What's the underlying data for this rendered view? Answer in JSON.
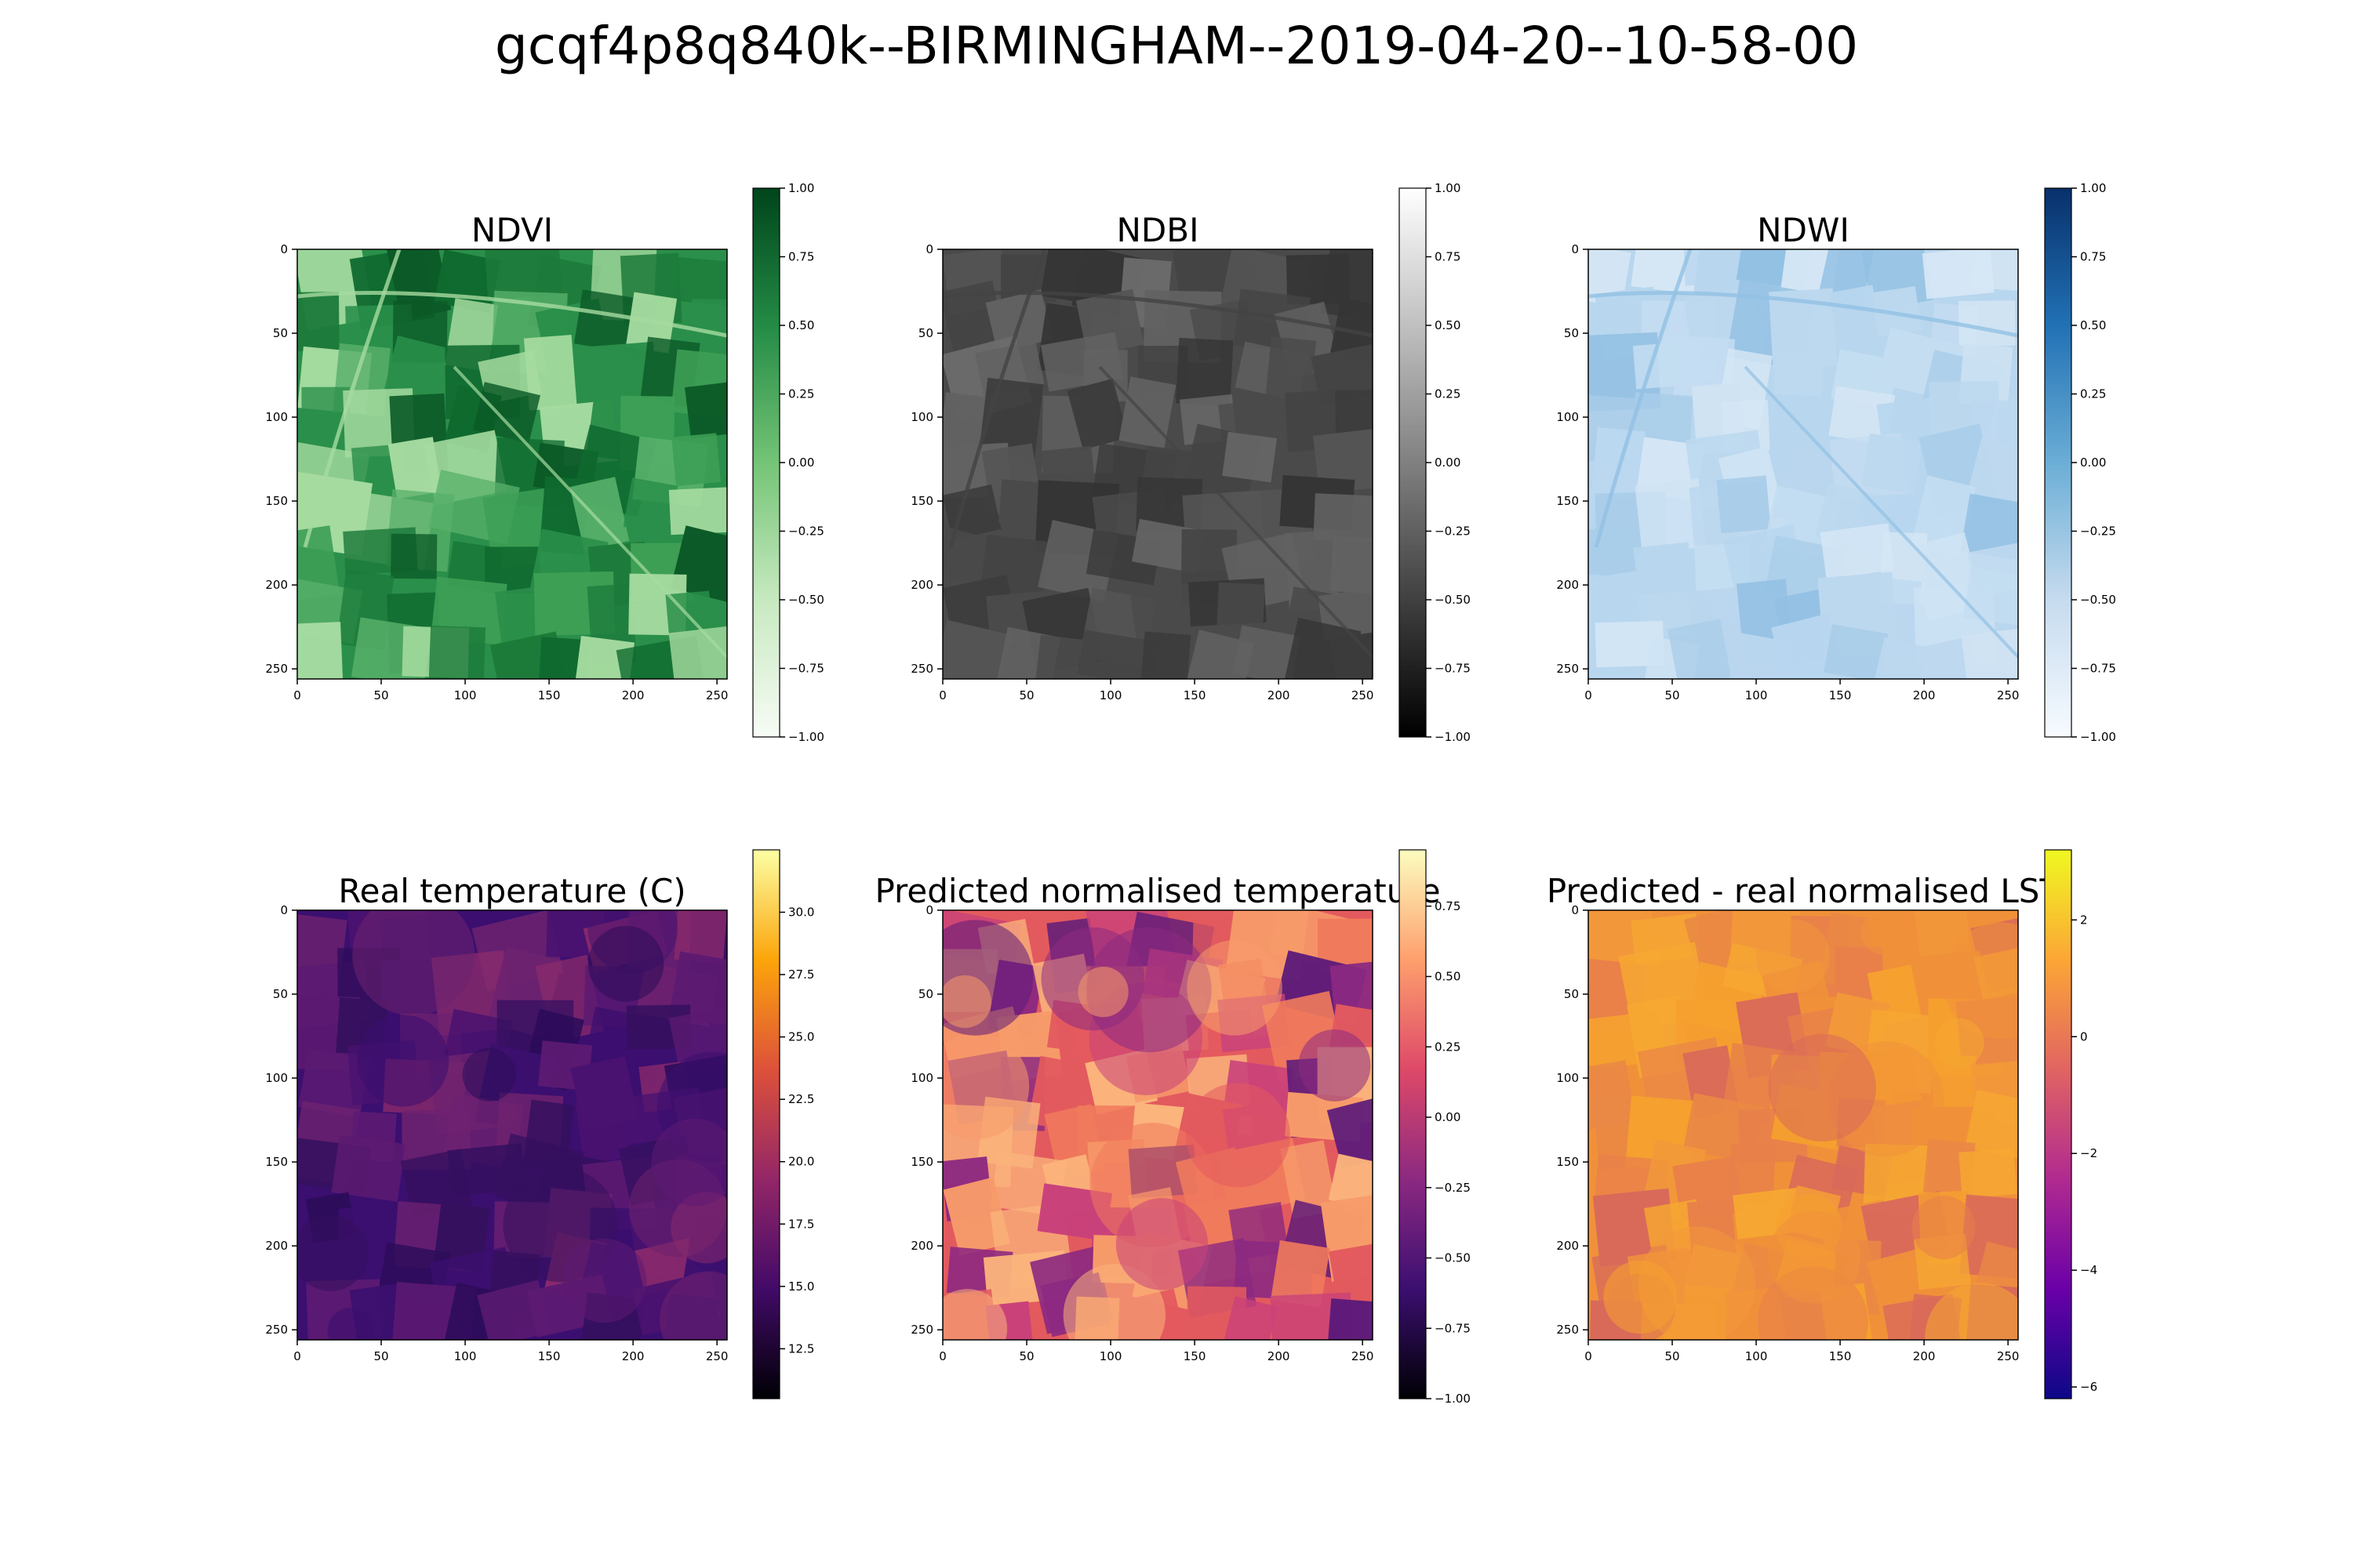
{
  "figure": {
    "suptitle": "gcqf4p8q840k--BIRMINGHAM--2019-04-20--10-58-00"
  },
  "chart_data": [
    {
      "type": "heatmap",
      "title": "NDVI",
      "colormap": "Greens",
      "gradient": [
        "#f7fcf5",
        "#c7e9c0",
        "#74c476",
        "#238b45",
        "#00441b"
      ],
      "field_colors": [
        "#2a8f4a",
        "#1c7a3a",
        "#0f6a2f",
        "#58b06a",
        "#a6dba0",
        "#3d9f55",
        "#0b5a27"
      ],
      "xticks": [
        0,
        50,
        100,
        150,
        200,
        250
      ],
      "yticks": [
        0,
        50,
        100,
        150,
        200,
        250
      ],
      "xlim": [
        0,
        256
      ],
      "ylim": [
        256,
        0
      ],
      "colorbar": {
        "min": -1.0,
        "max": 1.0,
        "ticks": [
          "1.00",
          "0.75",
          "0.50",
          "0.25",
          "0.00",
          "−0.25",
          "−0.50",
          "−0.75",
          "−1.00"
        ],
        "tick_values": [
          1.0,
          0.75,
          0.5,
          0.25,
          0.0,
          -0.25,
          -0.5,
          -0.75,
          -1.0
        ]
      }
    },
    {
      "type": "heatmap",
      "title": "NDBI",
      "colormap": "gray",
      "gradient": [
        "#000000",
        "#404040",
        "#808080",
        "#c0c0c0",
        "#ffffff"
      ],
      "field_colors": [
        "#4a4a4a",
        "#3b3b3b",
        "#555555",
        "#626262",
        "#444444",
        "#6b6b6b",
        "#353535"
      ],
      "xticks": [
        0,
        50,
        100,
        150,
        200,
        250
      ],
      "yticks": [
        0,
        50,
        100,
        150,
        200,
        250
      ],
      "xlim": [
        0,
        256
      ],
      "ylim": [
        256,
        0
      ],
      "colorbar": {
        "min": -1.0,
        "max": 1.0,
        "ticks": [
          "1.00",
          "0.75",
          "0.50",
          "0.25",
          "0.00",
          "−0.25",
          "−0.50",
          "−0.75",
          "−1.00"
        ],
        "tick_values": [
          1.0,
          0.75,
          0.5,
          0.25,
          0.0,
          -0.25,
          -0.5,
          -0.75,
          -1.0
        ]
      }
    },
    {
      "type": "heatmap",
      "title": "NDWI",
      "colormap": "Blues",
      "gradient": [
        "#f7fbff",
        "#c6dbef",
        "#6baed6",
        "#2171b5",
        "#08306b"
      ],
      "field_colors": [
        "#b8d6ee",
        "#c4ddf1",
        "#a9cde9",
        "#cfe3f3",
        "#92c0e3",
        "#bcd8ef",
        "#d6e7f5"
      ],
      "xticks": [
        0,
        50,
        100,
        150,
        200,
        250
      ],
      "yticks": [
        0,
        50,
        100,
        150,
        200,
        250
      ],
      "xlim": [
        0,
        256
      ],
      "ylim": [
        256,
        0
      ],
      "colorbar": {
        "min": -1.0,
        "max": 1.0,
        "ticks": [
          "1.00",
          "0.75",
          "0.50",
          "0.25",
          "0.00",
          "−0.25",
          "−0.50",
          "−0.75",
          "−1.00"
        ],
        "tick_values": [
          1.0,
          0.75,
          0.5,
          0.25,
          0.0,
          -0.25,
          -0.5,
          -0.75,
          -1.0
        ]
      }
    },
    {
      "type": "heatmap",
      "title": "Real temperature (C)",
      "colormap": "inferno",
      "gradient": [
        "#000004",
        "#420a68",
        "#932667",
        "#dd513a",
        "#fca50a",
        "#fcffa4"
      ],
      "field_colors": [
        "#3b0f6f",
        "#4a1270",
        "#2c0c5a",
        "#5c1a72",
        "#6e2270",
        "#35105f",
        "#8a2a6c"
      ],
      "xticks": [
        0,
        50,
        100,
        150,
        200,
        250
      ],
      "yticks": [
        0,
        50,
        100,
        150,
        200,
        250
      ],
      "xlim": [
        0,
        256
      ],
      "ylim": [
        256,
        0
      ],
      "colorbar": {
        "min": 10.5,
        "max": 32.5,
        "ticks": [
          "30.0",
          "27.5",
          "25.0",
          "22.5",
          "20.0",
          "17.5",
          "15.0",
          "12.5"
        ],
        "tick_values": [
          30.0,
          27.5,
          25.0,
          22.5,
          20.0,
          17.5,
          15.0,
          12.5
        ]
      }
    },
    {
      "type": "heatmap",
      "title": "Predicted normalised temperature",
      "colormap": "magma",
      "gradient": [
        "#000004",
        "#3b0f70",
        "#8c2981",
        "#de4968",
        "#fe9f6d",
        "#fcfdbf"
      ],
      "field_colors": [
        "#e35a5e",
        "#f07a5c",
        "#c9417a",
        "#8c2981",
        "#f79b6a",
        "#5c1a7a",
        "#fbb47c"
      ],
      "xticks": [
        0,
        50,
        100,
        150,
        200,
        250
      ],
      "yticks": [
        0,
        50,
        100,
        150,
        200,
        250
      ],
      "xlim": [
        0,
        256
      ],
      "ylim": [
        256,
        0
      ],
      "colorbar": {
        "min": -1.0,
        "max": 0.95,
        "ticks": [
          "0.75",
          "0.50",
          "0.25",
          "0.00",
          "−0.25",
          "−0.50",
          "−0.75",
          "−1.00"
        ],
        "tick_values": [
          0.75,
          0.5,
          0.25,
          0.0,
          -0.25,
          -0.5,
          -0.75,
          -1.0
        ]
      }
    },
    {
      "type": "heatmap",
      "title": "Predicted - real normalised LST",
      "colormap": "plasma",
      "gradient": [
        "#0d0887",
        "#6a00a8",
        "#b12a90",
        "#e16462",
        "#fca636",
        "#f0f921"
      ],
      "field_colors": [
        "#f0913a",
        "#f5a02f",
        "#e8804a",
        "#f2983a",
        "#d96a5a",
        "#f6a832",
        "#ea8845"
      ],
      "xticks": [
        0,
        50,
        100,
        150,
        200,
        250
      ],
      "yticks": [
        0,
        50,
        100,
        150,
        200,
        250
      ],
      "xlim": [
        0,
        256
      ],
      "ylim": [
        256,
        0
      ],
      "colorbar": {
        "min": -6.2,
        "max": 3.2,
        "ticks": [
          "2",
          "0",
          "−2",
          "−4",
          "−6"
        ],
        "tick_values": [
          2,
          0,
          -2,
          -4,
          -6
        ]
      }
    }
  ]
}
